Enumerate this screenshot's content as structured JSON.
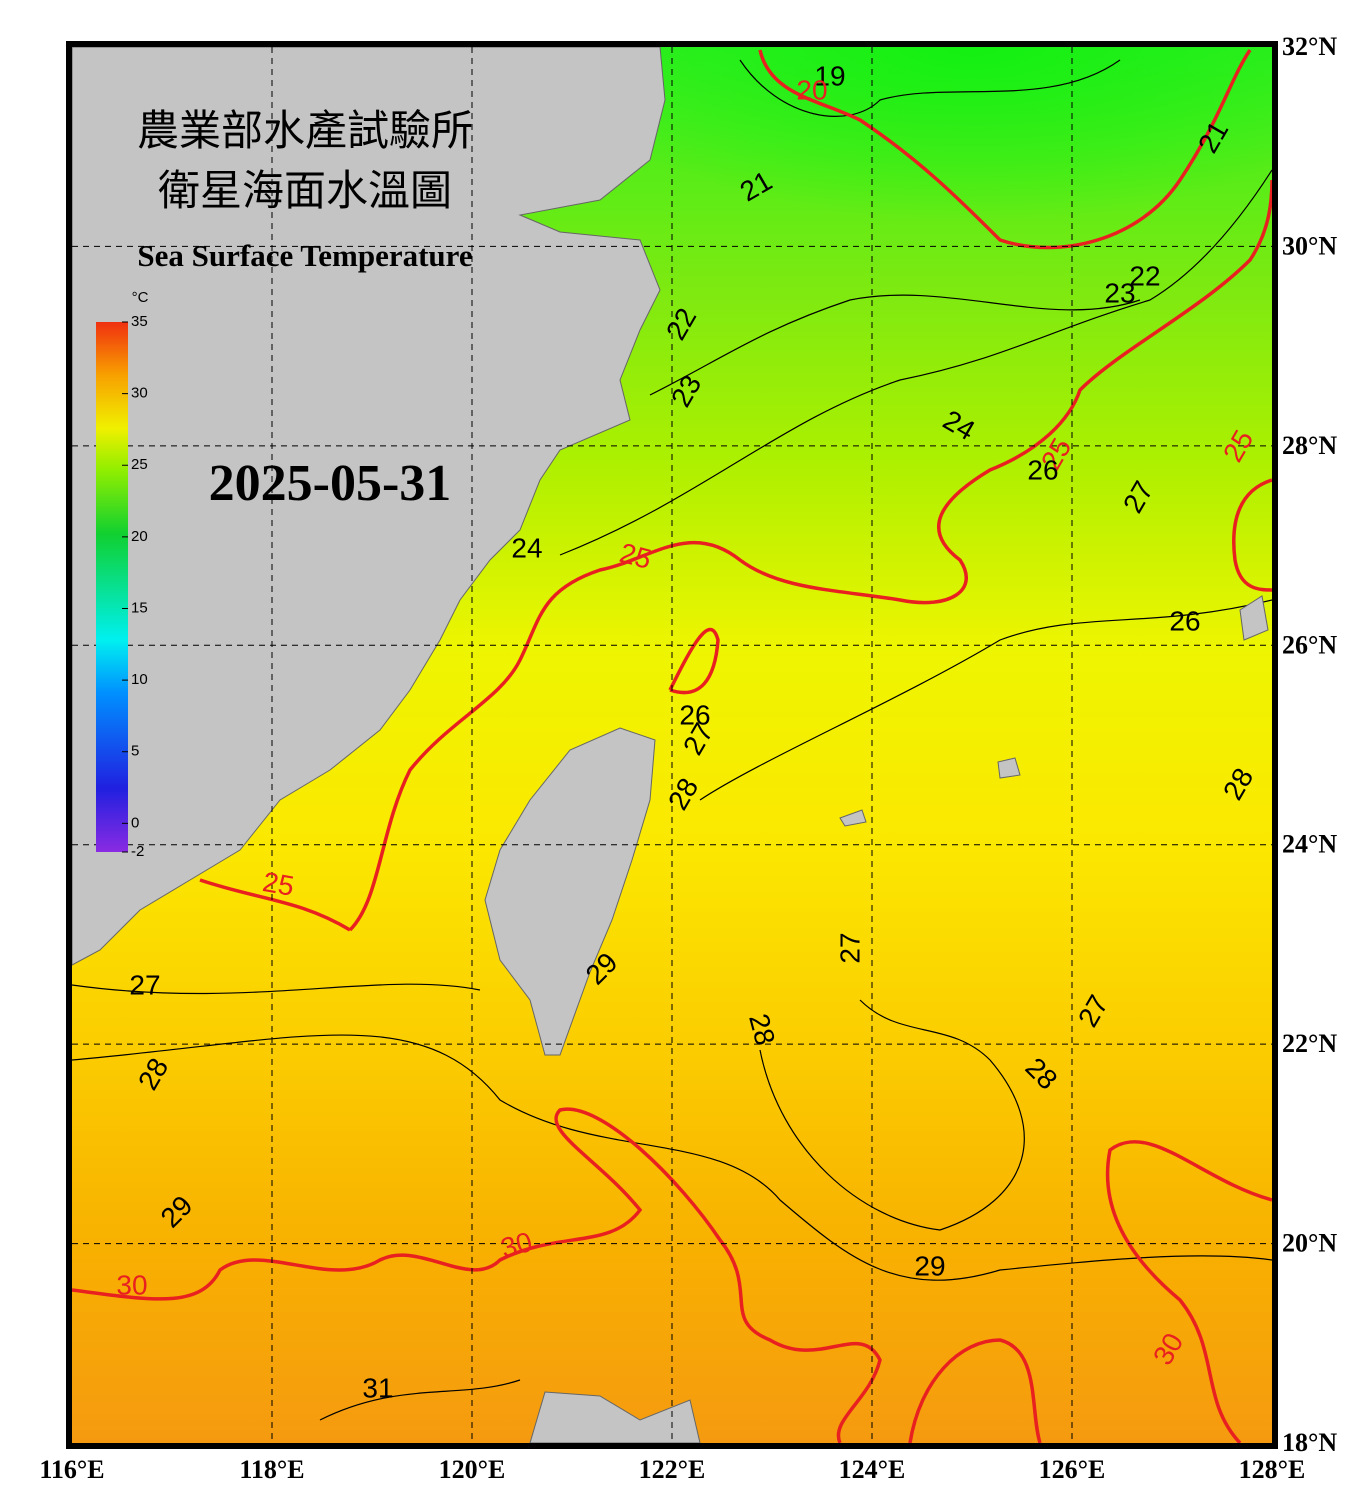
{
  "map": {
    "title_line1": "農業部水產試驗所",
    "title_line2": "衛星海面水溫圖",
    "subtitle": "Sea Surface Temperature",
    "date": "2025-05-31",
    "xlim": [
      116,
      128
    ],
    "ylim": [
      18,
      32
    ],
    "xticks": [
      {
        "value": 116,
        "label": "116°E"
      },
      {
        "value": 118,
        "label": "118°E"
      },
      {
        "value": 120,
        "label": "120°E"
      },
      {
        "value": 122,
        "label": "122°E"
      },
      {
        "value": 124,
        "label": "124°E"
      },
      {
        "value": 126,
        "label": "126°E"
      },
      {
        "value": 128,
        "label": "128°E"
      }
    ],
    "yticks": [
      {
        "value": 18,
        "label": "18°N"
      },
      {
        "value": 20,
        "label": "20°N"
      },
      {
        "value": 22,
        "label": "22°N"
      },
      {
        "value": 24,
        "label": "24°N"
      },
      {
        "value": 26,
        "label": "26°N"
      },
      {
        "value": 28,
        "label": "28°N"
      },
      {
        "value": 30,
        "label": "30°N"
      },
      {
        "value": 32,
        "label": "32°N"
      }
    ],
    "colorbar": {
      "unit": "°C",
      "lim": [
        -2,
        35
      ],
      "ticks": [
        35,
        30,
        25,
        20,
        15,
        10,
        5,
        0,
        -2
      ]
    },
    "contour_labels": [
      19,
      20,
      21,
      21,
      22,
      22,
      23,
      23,
      24,
      24,
      25,
      25,
      25,
      26,
      26,
      26,
      27,
      27,
      28,
      25,
      27,
      28,
      29,
      27,
      28,
      27,
      28,
      28,
      29,
      30,
      30,
      29,
      31,
      30
    ]
  }
}
